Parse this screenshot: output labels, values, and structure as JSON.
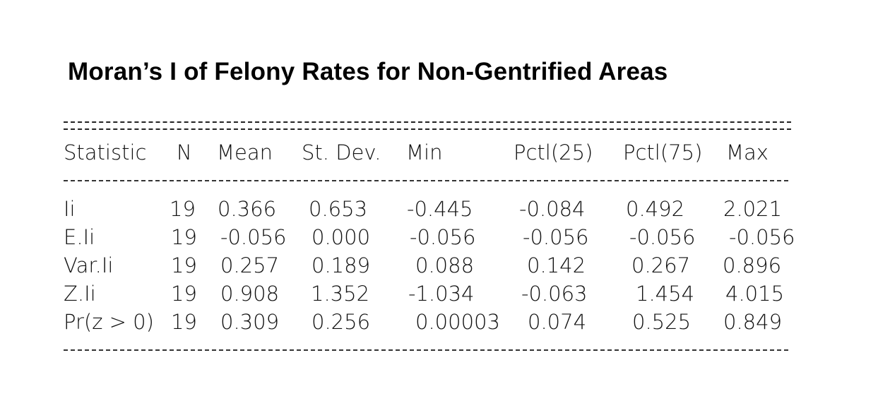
{
  "title": "Moran’s I of Felony Rates for Non-Gentrified Areas",
  "table": {
    "headers": [
      "Statistic",
      "N",
      "Mean",
      "St. Dev.",
      "Min",
      "Pctl(25)",
      "Pctl(75)",
      "Max"
    ],
    "rows": [
      [
        "Ii",
        "19",
        "0.366",
        "0.653",
        "-0.445",
        "-0.084",
        "0.492",
        "2.021"
      ],
      [
        "E.Ii",
        "19",
        "-0.056",
        "0.000",
        "-0.056",
        "-0.056",
        "-0.056",
        "-0.056"
      ],
      [
        "Var.Ii",
        "19",
        "0.257",
        "0.189",
        "0.088",
        "0.142",
        "0.267",
        "0.896"
      ],
      [
        "Z.Ii",
        "19",
        "0.908",
        "1.352",
        "-1.034",
        "-0.063",
        "1.454",
        "4.015"
      ],
      [
        "Pr(z > 0)",
        "19",
        "0.309",
        "0.256",
        "0.00003",
        "0.074",
        "0.525",
        "0.849"
      ]
    ]
  }
}
